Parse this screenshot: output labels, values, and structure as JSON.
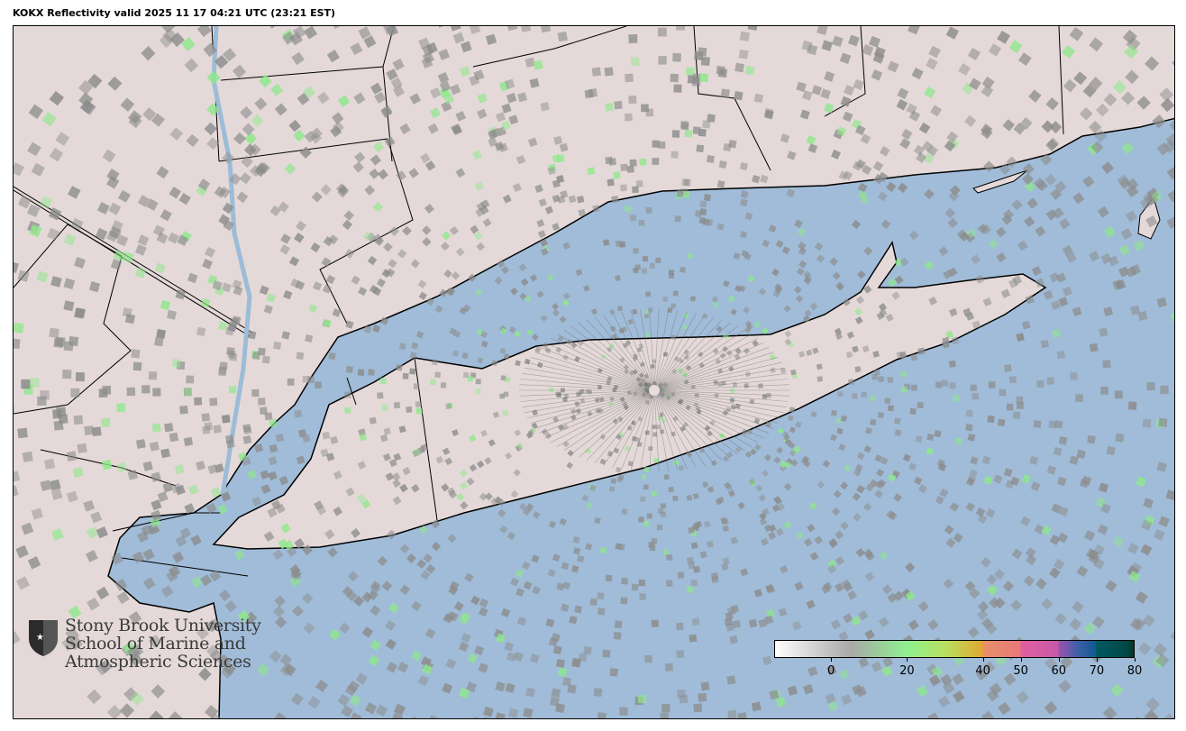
{
  "title": "KOKX Reflectivity valid 2025 11 17 04:21 UTC (23:21 EST)",
  "map": {
    "colors": {
      "ocean": "#a0bcd8",
      "land": "#e4d9d8",
      "boundary": "#000000",
      "radar_gray": "#8c8c8c",
      "radar_green": "#8ee88a"
    },
    "radar_site": "KOKX"
  },
  "logo": {
    "line1": "Stony Brook University",
    "line2": "School of Marine and",
    "line3": "Atmospheric Sciences"
  },
  "colorbar": {
    "range": [
      -15,
      80
    ],
    "ticks": [
      {
        "value": 0,
        "label": "0"
      },
      {
        "value": 20,
        "label": "20"
      },
      {
        "value": 40,
        "label": "40"
      },
      {
        "value": 50,
        "label": "50"
      },
      {
        "value": 60,
        "label": "60"
      },
      {
        "value": 70,
        "label": "70"
      },
      {
        "value": 80,
        "label": "80"
      }
    ],
    "stops": [
      {
        "value": -15,
        "color": "#ffffff"
      },
      {
        "value": 5,
        "color": "#a8a8a8"
      },
      {
        "value": 20,
        "color": "#8ef08e"
      },
      {
        "value": 30,
        "color": "#b8e060"
      },
      {
        "value": 40,
        "color": "#e0a830"
      },
      {
        "value": 40.1,
        "color": "#e8906a"
      },
      {
        "value": 50,
        "color": "#e87878"
      },
      {
        "value": 50.1,
        "color": "#e060a0"
      },
      {
        "value": 60,
        "color": "#c858a8"
      },
      {
        "value": 60.1,
        "color": "#a050b0"
      },
      {
        "value": 65,
        "color": "#4060a8"
      },
      {
        "value": 70,
        "color": "#105890"
      },
      {
        "value": 70.1,
        "color": "#005860"
      },
      {
        "value": 78,
        "color": "#004848"
      },
      {
        "value": 80,
        "color": "#003820"
      }
    ]
  }
}
